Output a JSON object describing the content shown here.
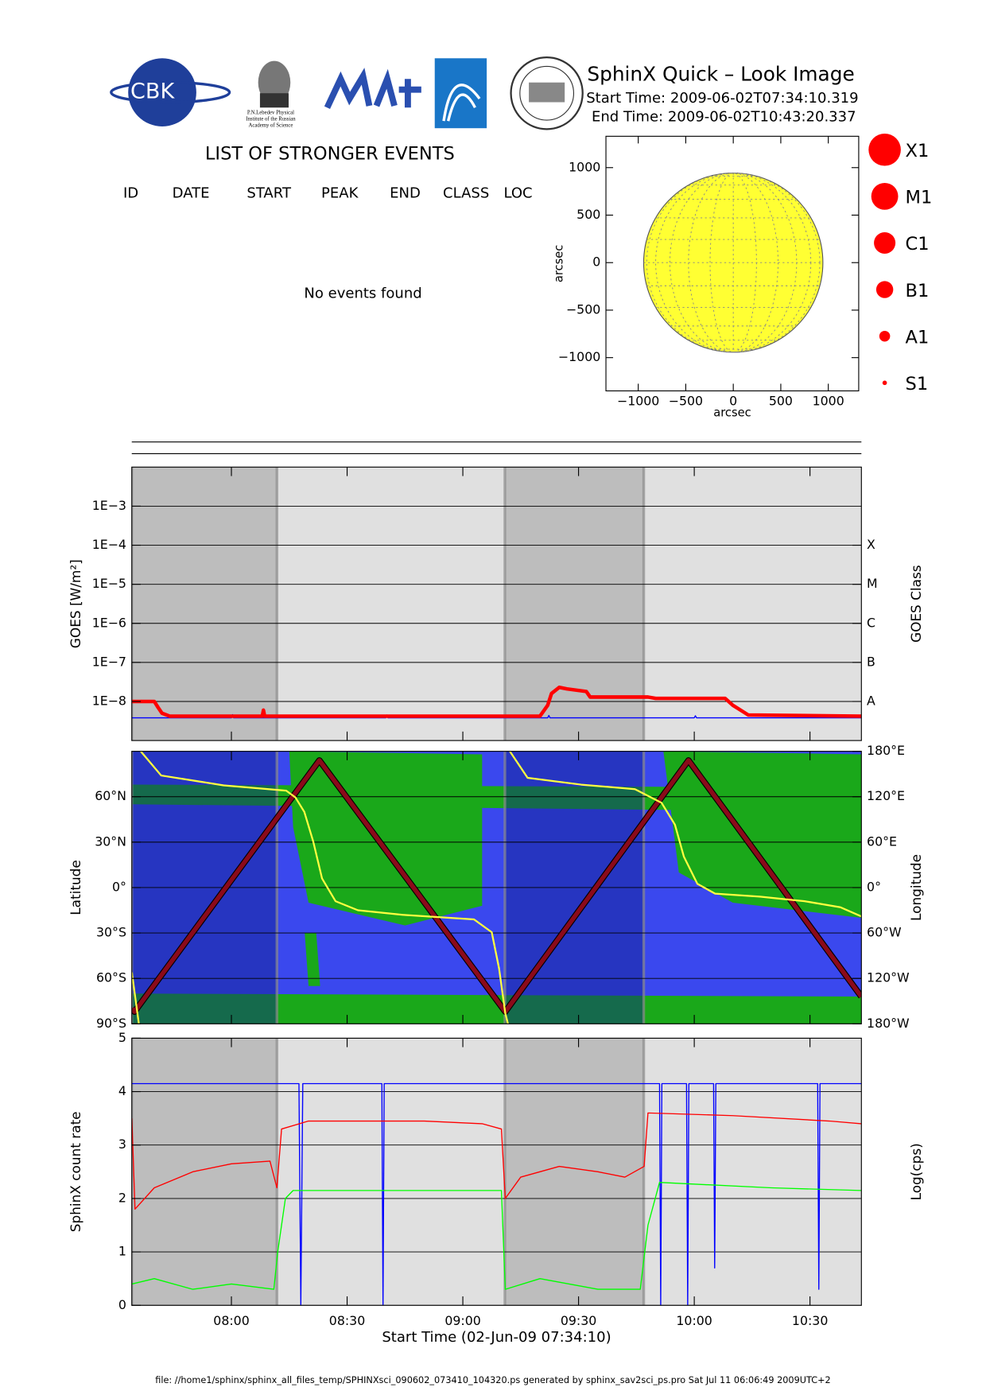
{
  "header": {
    "title": "SphinX Quick – Look Image",
    "start_time": "Start Time: 2009-06-02T07:34:10.319",
    "end_time": "End Time: 2009-06-02T10:43:20.337"
  },
  "logos": {
    "cbk": "CBK",
    "lebedev": [
      "P.N.Lebedev Physical",
      "Institute of the Russian",
      "Academy of Science"
    ]
  },
  "events": {
    "title": "LIST OF STRONGER EVENTS",
    "columns": [
      "ID",
      "DATE",
      "START",
      "PEAK",
      "END",
      "CLASS",
      "LOC"
    ],
    "message": "No events found"
  },
  "size_legend": [
    "X1",
    "M1",
    "C1",
    "B1",
    "A1",
    "S1"
  ],
  "orbit": {
    "night_intervals": [
      [
        454.17,
        491.8
      ],
      [
        550.9,
        586.9
      ]
    ]
  },
  "footer": "file: //home1/sphinx/sphinx_all_files_temp/SPHINXsci_090602_073410_104320.ps generated by sphinx_sav2sci_ps.pro Sat Jul 11 06:06:49 2009UTC+2",
  "chart_data": [
    {
      "type": "disk",
      "xlabel": "arcsec",
      "ylabel": "arcsec",
      "xlim": [
        -1340,
        1320
      ],
      "ylim": [
        -1350,
        1330
      ],
      "xticks": [
        {
          "value": -1000,
          "label": "−1000"
        },
        {
          "value": -500,
          "label": "−500"
        },
        0,
        500,
        1000
      ],
      "yticks": [
        {
          "value": -1000,
          "label": "−1000"
        },
        {
          "value": -500,
          "label": "−500"
        },
        0,
        500,
        1000
      ],
      "disk_radius": 943,
      "color": "#ffff33"
    },
    {
      "type": "line",
      "ylabel": "GOES [W/m²]",
      "y2label": "GOES Class",
      "log_y": true,
      "ylim": [
        1e-09,
        0.01
      ],
      "yticks": [
        {
          "value": 1e-08,
          "label": "1E−8"
        },
        {
          "value": 1e-07,
          "label": "1E−7"
        },
        {
          "value": 1e-06,
          "label": "1E−6"
        },
        {
          "value": 1e-05,
          "label": "1E−5"
        },
        {
          "value": 0.0001,
          "label": "1E−4"
        },
        {
          "value": 0.001,
          "label": "1E−3"
        }
      ],
      "class_ticks": [
        {
          "value": 1e-08,
          "label": "A"
        },
        {
          "value": 1e-07,
          "label": "B"
        },
        {
          "value": 1e-06,
          "label": "C"
        },
        {
          "value": 1e-05,
          "label": "M"
        },
        {
          "value": 0.0001,
          "label": "X"
        }
      ],
      "grid": true,
      "background": "#e0e0e0",
      "night_color": "#bdbdbd",
      "series": [
        {
          "color": "#0000ff",
          "x": [
            454.2,
            480,
            480.3,
            480.6,
            520,
            520.3,
            520.6,
            560,
            562,
            562.3,
            562.6,
            600,
            600.3,
            600.6,
            643.3
          ],
          "values": [
            3.8e-09,
            3.8e-09,
            4.6e-09,
            3.8e-09,
            3.8e-09,
            4.5e-09,
            3.8e-09,
            3.8e-09,
            3.8e-09,
            4.4e-09,
            3.8e-09,
            3.8e-09,
            4.3e-09,
            3.8e-09,
            3.8e-09
          ]
        },
        {
          "color": "#ff0000",
          "x": [
            454.2,
            460,
            461,
            462,
            464,
            488,
            488.3,
            488.6,
            560,
            562,
            563,
            565,
            567,
            572,
            573,
            588,
            590,
            608,
            610,
            612,
            614,
            643.3
          ],
          "values": [
            1e-08,
            1e-08,
            7e-09,
            5e-09,
            4.2e-09,
            4.2e-09,
            6e-09,
            4.2e-09,
            4.2e-09,
            8e-09,
            1.6e-08,
            2.3e-08,
            2.1e-08,
            1.8e-08,
            1.3e-08,
            1.3e-08,
            1.2e-08,
            1.2e-08,
            8e-09,
            6e-09,
            4.5e-09,
            4.2e-09
          ]
        }
      ]
    },
    {
      "type": "line",
      "ylabel": "Latitude",
      "y2label": "Longitude",
      "ylim": [
        -90,
        90
      ],
      "yticks": [
        {
          "value": -90,
          "label": "90°S"
        },
        {
          "value": -60,
          "label": "60°S"
        },
        {
          "value": -30,
          "label": "30°S"
        },
        {
          "value": 0,
          "label": "0°"
        },
        {
          "value": 30,
          "label": "30°N"
        },
        {
          "value": 60,
          "label": "60°N"
        }
      ],
      "y2lim": [
        -180,
        180
      ],
      "y2ticks": [
        {
          "value": -180,
          "label": "180°W"
        },
        {
          "value": -120,
          "label": "120°W"
        },
        {
          "value": -60,
          "label": "60°W"
        },
        {
          "value": 0,
          "label": "0°"
        },
        {
          "value": 60,
          "label": "60°E"
        },
        {
          "value": 120,
          "label": "120°E"
        },
        {
          "value": 180,
          "label": "180°E"
        }
      ],
      "grid": true,
      "background": "#3a48ee",
      "night_color": "#10208a",
      "series": [
        {
          "color": "#8b0a1a",
          "x": [
            454.2,
            454.9,
            502.8,
            551.0,
            598.5,
            643.3
          ],
          "values": [
            -80,
            -82,
            84,
            -82,
            84,
            -72
          ]
        },
        {
          "color": "#ffff40",
          "axis": "y2",
          "x": [
            454.2,
            456.0,
            456.1,
            456.5,
            461.8,
            478.0,
            494.2,
            496.6,
            498.9,
            501.2,
            503.5,
            507.0,
            512.8,
            524.4,
            542.9,
            547.5,
            549.4,
            551.0,
            551.7,
            551.8,
            552.2,
            556.8,
            570.7,
            584.6,
            591.5,
            595.0,
            597.3,
            600.8,
            605.4,
            617.0,
            628.6,
            637.9,
            643.3
          ],
          "values": [
            -112,
            -180,
            null,
            180,
            148,
            135,
            128,
            119,
            100,
            61,
            12,
            -18,
            -30,
            -36,
            -42,
            -59,
            -107,
            -166,
            -180,
            null,
            180,
            145,
            136,
            130,
            112,
            83,
            41,
            5,
            -8,
            -12,
            -18,
            -26,
            -38
          ]
        }
      ]
    },
    {
      "type": "line",
      "ylabel": "SphinX count rate",
      "y2label": "Log(cps)",
      "xlabel": "Start Time (02-Jun-09 07:34:10)",
      "xlim": [
        454.17,
        643.33
      ],
      "xticks": [
        {
          "value": 480,
          "label": "08:00"
        },
        {
          "value": 510,
          "label": "08:30"
        },
        {
          "value": 540,
          "label": "09:00"
        },
        {
          "value": 570,
          "label": "09:30"
        },
        {
          "value": 600,
          "label": "10:00"
        },
        {
          "value": 630,
          "label": "10:30"
        }
      ],
      "ylim": [
        0,
        5
      ],
      "yticks": [
        0,
        1,
        2,
        3,
        4,
        5
      ],
      "grid": true,
      "background": "#e0e0e0",
      "night_color": "#bdbdbd",
      "series": [
        {
          "color": "#0000ff",
          "x": [
            454.2,
            497.5,
            498,
            498.5,
            519,
            519.3,
            519.6,
            591,
            591.3,
            591.6,
            598,
            598.3,
            598.6,
            605,
            605.3,
            605.6,
            632,
            632.3,
            632.6,
            643.3
          ],
          "values": [
            4.15,
            4.15,
            0,
            4.15,
            4.15,
            0,
            4.15,
            4.15,
            0,
            4.15,
            4.15,
            0,
            4.15,
            4.15,
            0.7,
            4.15,
            4.15,
            0.3,
            4.15,
            4.15
          ]
        },
        {
          "color": "#ff0000",
          "x": [
            454.2,
            455,
            460,
            470,
            480,
            490,
            491.8,
            493,
            500,
            530,
            545,
            550,
            551,
            555,
            565,
            575,
            582,
            587,
            588,
            610,
            635,
            643.3
          ],
          "values": [
            3.5,
            1.8,
            2.2,
            2.5,
            2.65,
            2.7,
            2.2,
            3.3,
            3.45,
            3.45,
            3.4,
            3.3,
            2.0,
            2.4,
            2.6,
            2.5,
            2.4,
            2.6,
            3.6,
            3.55,
            3.45,
            3.4
          ]
        },
        {
          "color": "#00ff00",
          "x": [
            454.2,
            460,
            470,
            480,
            491,
            492,
            494,
            496,
            550,
            551,
            560,
            575,
            586,
            588,
            591,
            620,
            643.3
          ],
          "values": [
            0.4,
            0.5,
            0.3,
            0.4,
            0.3,
            1.0,
            2.0,
            2.15,
            2.15,
            0.3,
            0.5,
            0.3,
            0.3,
            1.5,
            2.3,
            2.2,
            2.15
          ]
        }
      ]
    }
  ]
}
